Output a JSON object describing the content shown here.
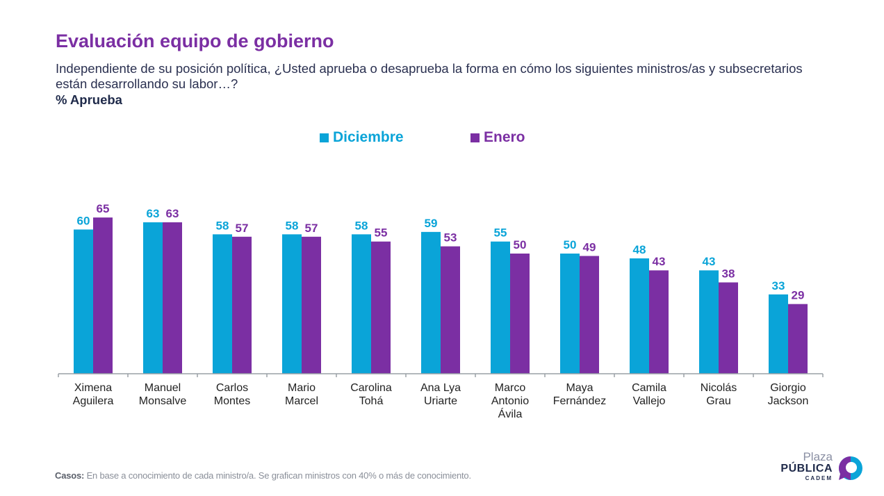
{
  "header": {
    "title": "Evaluación equipo de gobierno",
    "subtitle": "Independiente de su posición política, ¿Usted aprueba o desaprueba la forma en cómo los siguientes ministros/as y subsecretarios están desarrollando su labor…?",
    "measure": "% Aprueba"
  },
  "footer": {
    "casos_label": "Casos:",
    "casos_text": "En base a conocimiento de cada ministro/a. Se grafican ministros con 40% o más de conocimiento."
  },
  "logo": {
    "line1": "Plaza",
    "line2": "PÚBLICA",
    "line3": "CADEM"
  },
  "colors": {
    "diciembre": "#0aa4d8",
    "enero": "#7b2fa3",
    "axis": "#9aa0a6",
    "tick_label": "#222222"
  },
  "chart_data": {
    "type": "bar",
    "categories": [
      [
        "Ximena",
        "Aguilera"
      ],
      [
        "Manuel",
        "Monsalve"
      ],
      [
        "Carlos",
        "Montes"
      ],
      [
        "Mario",
        "Marcel"
      ],
      [
        "Carolina",
        "Tohá"
      ],
      [
        "Ana Lya",
        "Uriarte"
      ],
      [
        "Marco",
        "Antonio",
        "Ávila"
      ],
      [
        "Maya",
        "Fernández"
      ],
      [
        "Camila",
        "Vallejo"
      ],
      [
        "Nicolás",
        "Grau"
      ],
      [
        "Giorgio",
        "Jackson"
      ]
    ],
    "series": [
      {
        "name": "Diciembre",
        "color": "#0aa4d8",
        "values": [
          60,
          63,
          58,
          58,
          58,
          59,
          55,
          50,
          48,
          43,
          33
        ]
      },
      {
        "name": "Enero",
        "color": "#7b2fa3",
        "values": [
          65,
          63,
          57,
          57,
          55,
          53,
          50,
          49,
          43,
          38,
          29
        ]
      }
    ],
    "ylim": [
      0,
      70
    ],
    "legend_position": "top-center",
    "grid": false
  }
}
